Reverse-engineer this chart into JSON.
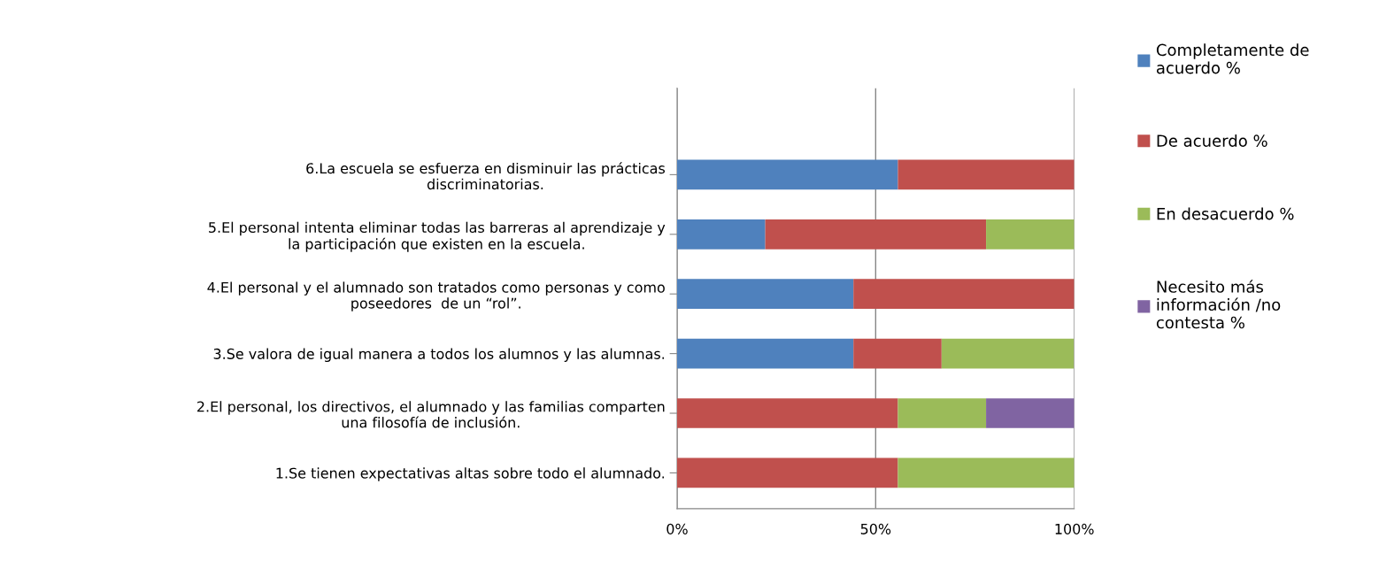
{
  "chart_data": {
    "type": "bar",
    "orientation": "horizontal",
    "stacked": true,
    "categories": [
      "6.La escuela se esfuerza en disminuir las prácticas\ndiscriminatorias.",
      "5.El personal intenta eliminar todas las barreras al aprendizaje y\nla participación que existen en la escuela.",
      "4.El personal y el alumnado son tratados como personas y como\nposeedores  de un “rol”.",
      "3.Se valora de igual manera a todos los alumnos y las alumnas.",
      "2.El personal, los directivos, el alumnado y las familias comparten\nuna filosofía de inclusión.",
      "1.Se tienen expectativas altas sobre todo el alumnado."
    ],
    "series": [
      {
        "name": "Completamente de acuerdo %",
        "color": "#4f81bd",
        "values": [
          55.6,
          22.2,
          44.4,
          44.4,
          0,
          0
        ]
      },
      {
        "name": "De acuerdo %",
        "color": "#c0504d",
        "values": [
          44.4,
          55.6,
          55.6,
          22.2,
          55.6,
          55.6
        ]
      },
      {
        "name": "En desacuerdo %",
        "color": "#9bbb59",
        "values": [
          0,
          22.2,
          0,
          33.3,
          22.2,
          44.4
        ]
      },
      {
        "name": "Necesito más información /no contesta %",
        "color": "#8064a2",
        "values": [
          0,
          0,
          0,
          0,
          22.2,
          0
        ]
      }
    ],
    "xlim": [
      0,
      100
    ],
    "xticks": [
      {
        "value": 0,
        "label": "0%"
      },
      {
        "value": 50,
        "label": "50%"
      },
      {
        "value": 100,
        "label": "100%"
      }
    ],
    "grid": "x",
    "legend": "right"
  }
}
